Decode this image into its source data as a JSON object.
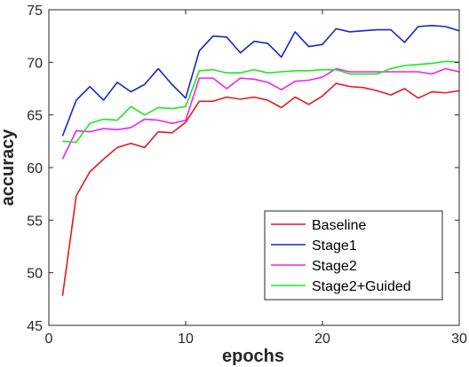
{
  "chart_data": {
    "type": "line",
    "xlabel": "epochs",
    "ylabel": "accuracy",
    "xlim": [
      0,
      30
    ],
    "ylim": [
      45,
      75
    ],
    "xticks": [
      0,
      10,
      20,
      30
    ],
    "yticks": [
      45,
      50,
      55,
      60,
      65,
      70,
      75
    ],
    "grid": false,
    "legend_position": "bottom-right",
    "x": [
      1,
      2,
      3,
      4,
      5,
      6,
      7,
      8,
      9,
      10,
      11,
      12,
      13,
      14,
      15,
      16,
      17,
      18,
      19,
      20,
      21,
      22,
      23,
      24,
      25,
      26,
      27,
      28,
      29,
      30
    ],
    "series": [
      {
        "name": "Baseline",
        "color": "#e6191e",
        "values": [
          47.8,
          57.3,
          59.6,
          60.8,
          61.9,
          62.3,
          61.9,
          63.4,
          63.3,
          64.3,
          66.3,
          66.3,
          66.7,
          66.5,
          66.7,
          66.4,
          65.7,
          66.7,
          66.0,
          66.8,
          68.0,
          67.7,
          67.6,
          67.3,
          66.9,
          67.5,
          66.6,
          67.2,
          67.1,
          67.3
        ]
      },
      {
        "name": "Stage1",
        "color": "#1a25c8",
        "values": [
          63.0,
          66.4,
          67.7,
          66.4,
          68.1,
          67.2,
          67.9,
          69.4,
          67.9,
          66.6,
          71.1,
          72.5,
          72.4,
          70.9,
          72.0,
          71.8,
          70.5,
          72.9,
          71.5,
          71.7,
          73.2,
          72.9,
          73.0,
          73.1,
          73.1,
          71.9,
          73.4,
          73.5,
          73.4,
          73.0
        ]
      },
      {
        "name": "Stage2",
        "color": "#f221f2",
        "values": [
          60.8,
          63.5,
          63.4,
          63.7,
          63.6,
          63.8,
          64.6,
          64.5,
          64.2,
          64.5,
          68.5,
          68.5,
          67.5,
          68.5,
          68.4,
          68.1,
          67.4,
          68.2,
          68.3,
          68.6,
          69.4,
          69.1,
          69.1,
          69.1,
          69.1,
          69.1,
          69.1,
          68.9,
          69.4,
          69.1
        ]
      },
      {
        "name": "Stage2+Guided",
        "color": "#21e621",
        "values": [
          62.5,
          62.4,
          64.2,
          64.6,
          64.5,
          65.8,
          65.0,
          65.7,
          65.6,
          65.8,
          69.2,
          69.3,
          69.0,
          69.0,
          69.3,
          69.0,
          69.1,
          69.2,
          69.2,
          69.3,
          69.3,
          68.9,
          68.9,
          68.9,
          69.4,
          69.7,
          69.8,
          69.9,
          70.1,
          70.0
        ]
      }
    ]
  }
}
